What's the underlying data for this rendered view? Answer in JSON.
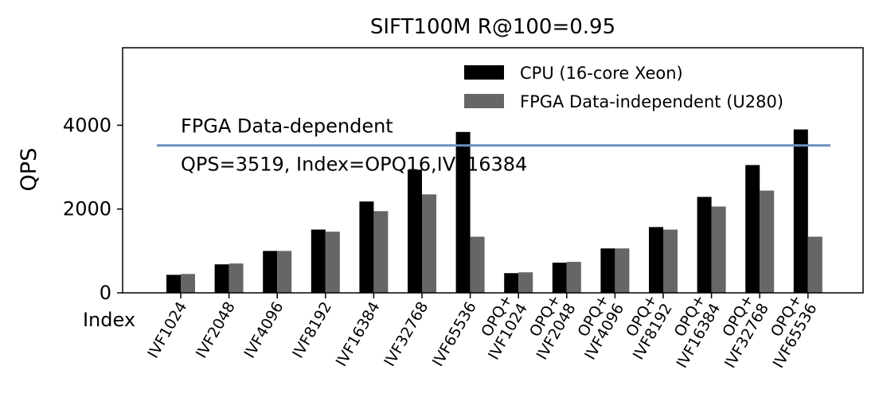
{
  "chart_data": {
    "type": "bar",
    "title": "SIFT100M R@100=0.95",
    "xlabel": "Index",
    "ylabel": "QPS",
    "ylim": [
      0,
      5850
    ],
    "yticks": [
      0,
      2000,
      4000
    ],
    "grid": false,
    "legend_position": "top-right",
    "categories": [
      [
        "IVF1024"
      ],
      [
        "IVF2048"
      ],
      [
        "IVF4096"
      ],
      [
        "IVF8192"
      ],
      [
        "IVF16384"
      ],
      [
        "IVF32768"
      ],
      [
        "IVF65536"
      ],
      [
        "OPQ+",
        "IVF1024"
      ],
      [
        "OPQ+",
        "IVF2048"
      ],
      [
        "OPQ+",
        "IVF4096"
      ],
      [
        "OPQ+",
        "IVF8192"
      ],
      [
        "OPQ+",
        "IVF16384"
      ],
      [
        "OPQ+",
        "IVF32768"
      ],
      [
        "OPQ+",
        "IVF65536"
      ]
    ],
    "series": [
      {
        "name": "CPU (16-core Xeon)",
        "color": "#000000",
        "values": [
          430,
          680,
          1000,
          1510,
          2180,
          2940,
          3840,
          470,
          720,
          1060,
          1570,
          2290,
          3050,
          3900
        ]
      },
      {
        "name": "FPGA Data-independent (U280)",
        "color": "#666666",
        "values": [
          450,
          700,
          1000,
          1460,
          1950,
          2350,
          1340,
          490,
          740,
          1060,
          1510,
          2060,
          2440,
          1340
        ]
      }
    ],
    "reference_line": {
      "value": 3519,
      "color": "#6e8fbf",
      "label_line1": "FPGA Data-dependent",
      "label_line2": "QPS=3519, Index=OPQ16,IVF16384"
    }
  }
}
